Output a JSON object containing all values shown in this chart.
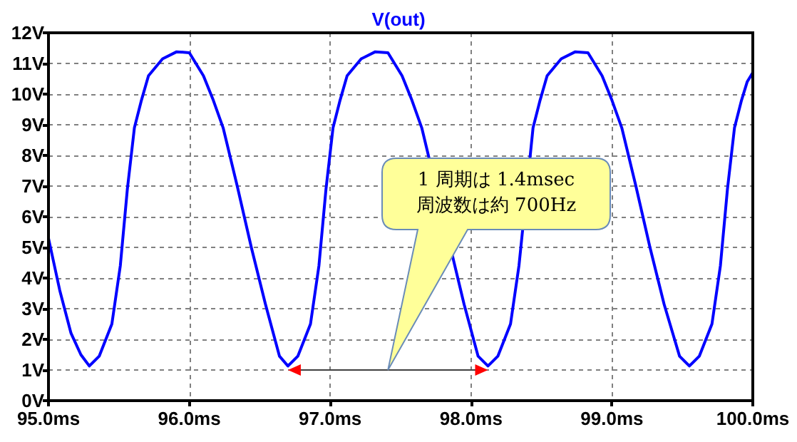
{
  "chart_data": {
    "type": "line",
    "title": "V(out)",
    "x": [
      95.0,
      95.08,
      95.16,
      95.23,
      95.29,
      95.36,
      95.45,
      95.51,
      95.56,
      95.61,
      95.66,
      95.71,
      95.81,
      95.91,
      96.0,
      96.1,
      96.17,
      96.24,
      96.34,
      96.44,
      96.54,
      96.64,
      96.7,
      96.77,
      96.86,
      96.92,
      96.97,
      97.02,
      97.07,
      97.12,
      97.22,
      97.32,
      97.41,
      97.51,
      97.58,
      97.65,
      97.75,
      97.85,
      97.95,
      98.05,
      98.12,
      98.19,
      98.28,
      98.34,
      98.39,
      98.44,
      98.49,
      98.54,
      98.64,
      98.74,
      98.83,
      98.93,
      99.0,
      99.07,
      99.17,
      99.27,
      99.37,
      99.48,
      99.55,
      99.62,
      99.71,
      99.77,
      99.82,
      99.87,
      99.92,
      99.96,
      100.0
    ],
    "series": [
      {
        "color": "#0000ff",
        "values": [
          5.3,
          3.6,
          2.2,
          1.5,
          1.13,
          1.45,
          2.5,
          4.4,
          6.9,
          8.9,
          9.8,
          10.6,
          11.15,
          11.38,
          11.35,
          10.6,
          9.8,
          8.9,
          7.0,
          5.0,
          3.15,
          1.45,
          1.13,
          1.45,
          2.5,
          4.4,
          6.9,
          8.9,
          9.8,
          10.6,
          11.15,
          11.38,
          11.35,
          10.6,
          9.8,
          8.9,
          null,
          null,
          3.15,
          1.45,
          1.13,
          1.45,
          2.5,
          4.4,
          null,
          8.9,
          9.8,
          10.6,
          11.15,
          11.38,
          11.35,
          10.6,
          9.8,
          8.9,
          7.0,
          5.0,
          3.15,
          1.45,
          1.13,
          1.45,
          2.5,
          4.4,
          6.9,
          8.9,
          9.8,
          10.4,
          10.7
        ]
      }
    ],
    "xlim": [
      95,
      100
    ],
    "xticks": [
      {
        "value": 95,
        "label": "95.0ms"
      },
      {
        "value": 96,
        "label": "96.0ms"
      },
      {
        "value": 97,
        "label": "97.0ms"
      },
      {
        "value": 98,
        "label": "98.0ms"
      },
      {
        "value": 99,
        "label": "99.0ms"
      },
      {
        "value": 100,
        "label": "100.0ms"
      }
    ],
    "ylim": [
      0,
      12
    ],
    "yticks": [
      {
        "value": 0,
        "label": "0V"
      },
      {
        "value": 1,
        "label": "1V"
      },
      {
        "value": 2,
        "label": "2V"
      },
      {
        "value": 3,
        "label": "3V"
      },
      {
        "value": 4,
        "label": "4V"
      },
      {
        "value": 5,
        "label": "5V"
      },
      {
        "value": 6,
        "label": "6V"
      },
      {
        "value": 7,
        "label": "7V"
      },
      {
        "value": 8,
        "label": "8V"
      },
      {
        "value": 9,
        "label": "9V"
      },
      {
        "value": 10,
        "label": "10V"
      },
      {
        "value": 11,
        "label": "11V"
      },
      {
        "value": 12,
        "label": "12V"
      }
    ],
    "grid": true,
    "marker": "none",
    "line_style": "solid",
    "annotations": [
      "1 周期は 1.4msec",
      "周波数は約 700Hz"
    ]
  }
}
